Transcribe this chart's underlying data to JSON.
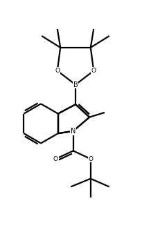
{
  "bg_color": "#ffffff",
  "line_color": "#000000",
  "line_width": 1.6,
  "figsize": [
    2.18,
    3.36
  ],
  "dpi": 100,
  "xlim": [
    0.5,
    6.5
  ],
  "ylim": [
    0.0,
    10.0
  ]
}
